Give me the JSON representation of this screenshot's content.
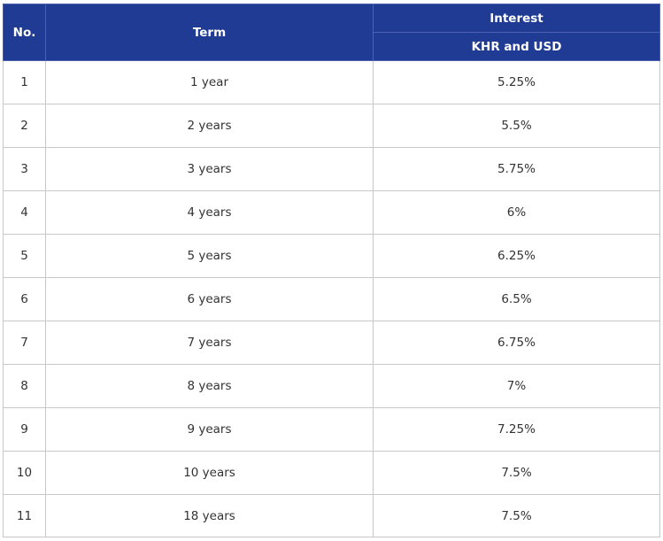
{
  "header": {
    "no": "No.",
    "term": "Term",
    "interest": "Interest",
    "currency": "KHR and USD"
  },
  "rows": [
    {
      "no": "1",
      "term": "1 year",
      "rate": "5.25%"
    },
    {
      "no": "2",
      "term": "2 years",
      "rate": "5.5%"
    },
    {
      "no": "3",
      "term": "3 years",
      "rate": "5.75%"
    },
    {
      "no": "4",
      "term": "4 years",
      "rate": "6%"
    },
    {
      "no": "5",
      "term": "5 years",
      "rate": "6.25%"
    },
    {
      "no": "6",
      "term": "6 years",
      "rate": "6.5%"
    },
    {
      "no": "7",
      "term": "7 years",
      "rate": "6.75%"
    },
    {
      "no": "8",
      "term": "8 years",
      "rate": "7%"
    },
    {
      "no": "9",
      "term": "9 years",
      "rate": "7.25%"
    },
    {
      "no": "10",
      "term": "10 years",
      "rate": "7.5%"
    },
    {
      "no": "11",
      "term": "18 years",
      "rate": "7.5%"
    }
  ],
  "colors": {
    "header_bg": "#1f3b94",
    "header_text": "#ffffff",
    "border": "#c8c8c8"
  }
}
